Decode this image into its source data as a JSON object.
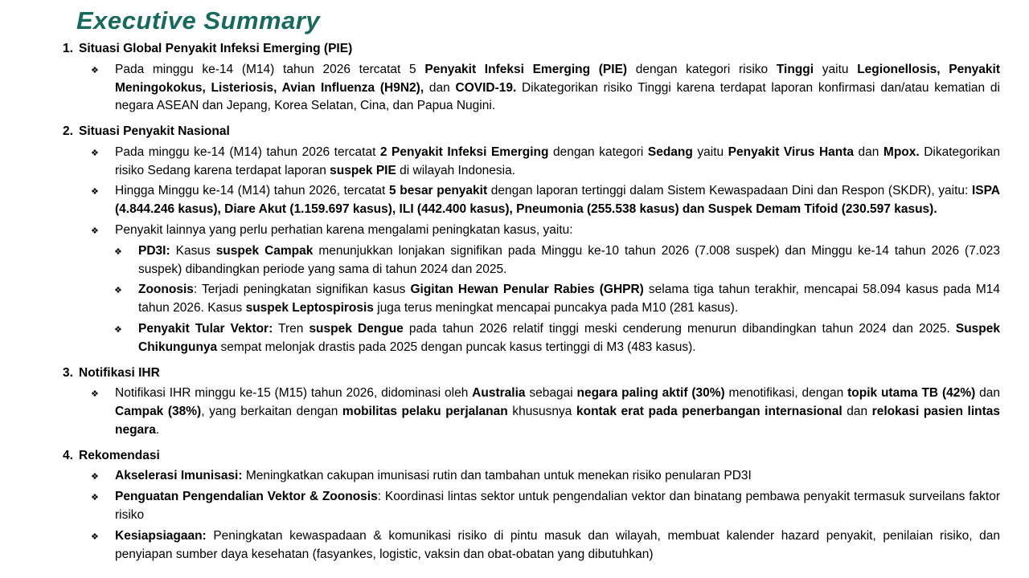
{
  "title": "Executive Summary",
  "theme": {
    "title_color": "#166A5D",
    "text_color": "#000000"
  },
  "bullet_glyph": "❖",
  "sections": [
    {
      "number": "1.",
      "heading": "Situasi Global Penyakit Infeksi Emerging (PIE)",
      "items": [
        {
          "level": 1,
          "runs": [
            {
              "t": "Pada minggu ke-14 (M14) tahun 2026 tercatat 5 "
            },
            {
              "t": "Penyakit Infeksi Emerging (PIE)",
              "b": true
            },
            {
              "t": " dengan kategori risiko "
            },
            {
              "t": "Tinggi",
              "b": true
            },
            {
              "t": " yaitu "
            },
            {
              "t": "Legionellosis, Penyakit Meningokokus, Listeriosis, Avian Influenza (H9N2),",
              "b": true
            },
            {
              "t": " dan "
            },
            {
              "t": "COVID-19.",
              "b": true
            },
            {
              "t": " Dikategorikan risiko Tinggi karena terdapat laporan konfirmasi dan/atau kematian di negara ASEAN dan Jepang, Korea Selatan, Cina, dan Papua Nugini."
            }
          ]
        }
      ]
    },
    {
      "number": "2.",
      "heading": "Situasi Penyakit Nasional",
      "items": [
        {
          "level": 1,
          "runs": [
            {
              "t": "Pada minggu ke-14 (M14) tahun 2026 tercatat "
            },
            {
              "t": "2 Penyakit Infeksi Emerging",
              "b": true
            },
            {
              "t": " dengan kategori "
            },
            {
              "t": "Sedang",
              "b": true
            },
            {
              "t": " yaitu "
            },
            {
              "t": "Penyakit Virus Hanta",
              "b": true
            },
            {
              "t": " dan "
            },
            {
              "t": "Mpox.",
              "b": true
            },
            {
              "t": " Dikategorikan risiko Sedang karena terdapat laporan "
            },
            {
              "t": "suspek PIE",
              "b": true
            },
            {
              "t": " di wilayah Indonesia."
            }
          ]
        },
        {
          "level": 1,
          "runs": [
            {
              "t": "Hingga Minggu ke-14 (M14) tahun 2026, tercatat "
            },
            {
              "t": "5 besar penyakit",
              "b": true
            },
            {
              "t": " dengan laporan tertinggi dalam Sistem Kewaspadaan Dini dan Respon (SKDR), yaitu: "
            },
            {
              "t": "ISPA (4.844.246 kasus), Diare Akut (1.159.697 kasus), ILI (442.400 kasus), Pneumonia (255.538 kasus) dan Suspek Demam Tifoid (230.597 kasus).",
              "b": true
            }
          ]
        },
        {
          "level": 1,
          "runs": [
            {
              "t": "Penyakit lainnya yang perlu perhatian karena mengalami peningkatan kasus, yaitu:"
            }
          ]
        },
        {
          "level": 2,
          "runs": [
            {
              "t": "PD3I:",
              "b": true
            },
            {
              "t": " Kasus "
            },
            {
              "t": "suspek Campak",
              "b": true
            },
            {
              "t": " menunjukkan lonjakan signifikan pada Minggu ke-10 tahun 2026 (7.008 suspek) dan Minggu ke-14 tahun 2026 (7.023 suspek) dibandingkan periode yang sama di tahun 2024 dan 2025."
            }
          ]
        },
        {
          "level": 2,
          "runs": [
            {
              "t": "Zoonosis",
              "b": true
            },
            {
              "t": ": Terjadi peningkatan signifikan kasus "
            },
            {
              "t": "Gigitan Hewan Penular Rabies (GHPR)",
              "b": true
            },
            {
              "t": " selama tiga tahun terakhir, mencapai 58.094 kasus pada M14 tahun 2026. Kasus "
            },
            {
              "t": "suspek Leptospirosis",
              "b": true
            },
            {
              "t": " juga terus meningkat mencapai puncakya pada M10 (281 kasus)."
            }
          ]
        },
        {
          "level": 2,
          "runs": [
            {
              "t": "Penyakit Tular Vektor:",
              "b": true
            },
            {
              "t": " Tren "
            },
            {
              "t": "suspek Dengue",
              "b": true
            },
            {
              "t": " pada tahun 2026 relatif tinggi meski cenderung menurun dibandingkan tahun 2024 dan 2025. "
            },
            {
              "t": "Suspek Chikungunya",
              "b": true
            },
            {
              "t": " sempat melonjak drastis pada 2025 dengan puncak kasus tertinggi di M3 (483 kasus)."
            }
          ]
        }
      ]
    },
    {
      "number": "3.",
      "heading": "Notifikasi IHR",
      "items": [
        {
          "level": 1,
          "runs": [
            {
              "t": "Notifikasi IHR minggu ke-15 (M15) tahun 2026, didominasi oleh "
            },
            {
              "t": "Australia",
              "b": true
            },
            {
              "t": " sebagai "
            },
            {
              "t": "negara paling aktif (30%)",
              "b": true
            },
            {
              "t": " menotifikasi, dengan "
            },
            {
              "t": "topik utama TB (42%)",
              "b": true
            },
            {
              "t": " dan "
            },
            {
              "t": "Campak (38%)",
              "b": true
            },
            {
              "t": ", yang berkaitan dengan "
            },
            {
              "t": "mobilitas pelaku perjalanan",
              "b": true
            },
            {
              "t": " khususnya "
            },
            {
              "t": "kontak erat pada penerbangan internasional",
              "b": true
            },
            {
              "t": " dan "
            },
            {
              "t": "relokasi pasien lintas negara",
              "b": true
            },
            {
              "t": "."
            }
          ]
        }
      ]
    },
    {
      "number": "4.",
      "heading": "Rekomendasi",
      "items": [
        {
          "level": 1,
          "runs": [
            {
              "t": "Akselerasi Imunisasi:",
              "b": true
            },
            {
              "t": " Meningkatkan cakupan imunisasi rutin dan tambahan untuk menekan risiko penularan PD3I"
            }
          ]
        },
        {
          "level": 1,
          "runs": [
            {
              "t": "Penguatan Pengendalian Vektor & Zoonosis",
              "b": true
            },
            {
              "t": ": Koordinasi lintas sektor untuk pengendalian vektor dan binatang pembawa penyakit termasuk surveilans faktor risiko"
            }
          ]
        },
        {
          "level": 1,
          "runs": [
            {
              "t": "Kesiapsiagaan:",
              "b": true
            },
            {
              "t": " Peningkatan kewaspadaan & komunikasi risiko di pintu masuk dan wilayah, membuat kalender hazard penyakit, penilaian risiko, dan penyiapan sumber daya kesehatan (fasyankes, logistic, vaksin dan obat-obatan yang dibutuhkan)"
            }
          ]
        }
      ]
    }
  ]
}
